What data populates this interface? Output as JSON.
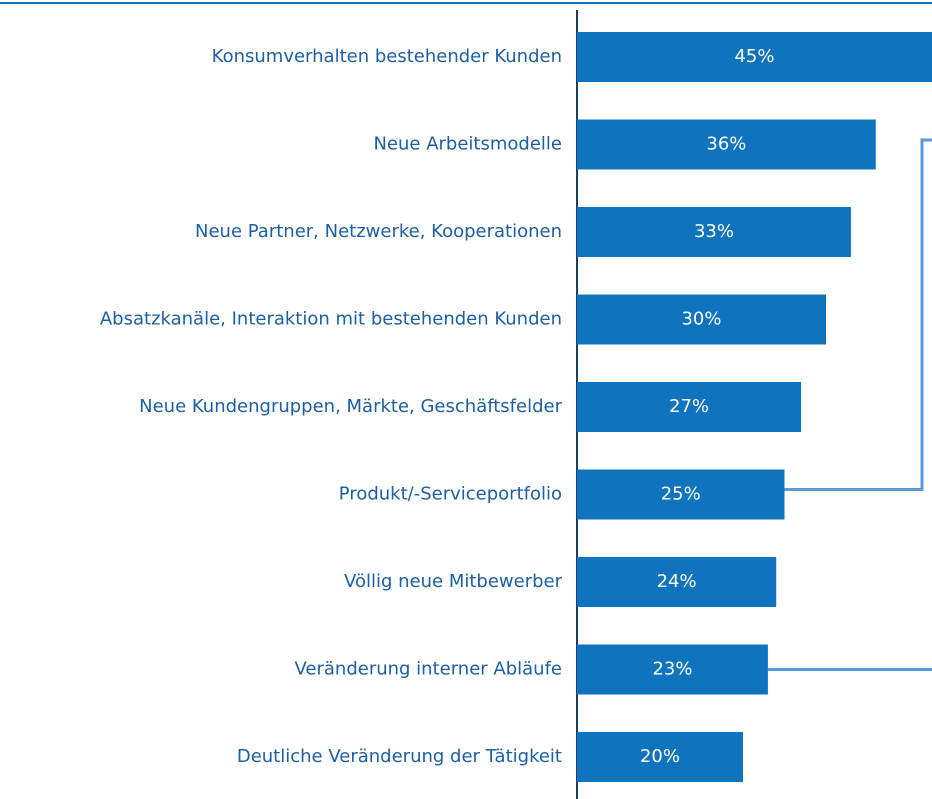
{
  "chart_data": {
    "type": "bar",
    "orientation": "horizontal",
    "color": "#0f74bd",
    "categories": [
      "Konsumverhalten bestehender Kunden",
      "Neue Arbeitsmodelle",
      "Neue Partner, Netzwerke, Kooperationen",
      "Absatzkanäle, Interaktion mit bestehenden Kunden",
      "Neue Kundengruppen, Märkte, Geschäftsfelder",
      "Produkt/-Serviceportfolio",
      "Völlig neue Mitbewerber",
      "Veränderung interner Abläufe",
      "Deutliche Veränderung der Tätigkeit"
    ],
    "values": [
      45,
      36,
      33,
      30,
      27,
      25,
      24,
      23,
      20
    ],
    "value_labels": [
      "45%",
      "36%",
      "33%",
      "30%",
      "27%",
      "25%",
      "24%",
      "23%",
      "20%"
    ]
  }
}
